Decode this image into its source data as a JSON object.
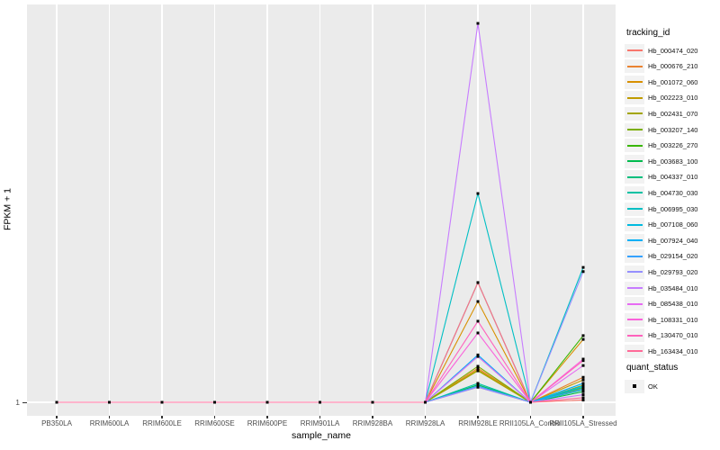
{
  "chart_data": {
    "type": "line",
    "title": "",
    "xlabel": "sample_name",
    "ylabel": "FPKM + 1",
    "y_tick_labels": [
      "1"
    ],
    "value_units": "relative height above the FPKM+1 = 1 baseline (0-1); only the '1' tick is labeled on the y axis",
    "grid": "on",
    "panel_bg": "#EBEBEB",
    "grid_color": "#FFFFFF",
    "point_shape": "filled-square",
    "point_color": "#000000",
    "categories": [
      "PB350LA",
      "RRIM600LA",
      "RRIM600LE",
      "RRIM600SE",
      "RRIM600PE",
      "RRIM901LA",
      "RRIM928BA",
      "RRIM928LA",
      "RRIM928LE",
      "RRII105LA_Control",
      "RRII105LA_Stressed"
    ],
    "series": [
      {
        "name": "Hb_000474_020",
        "color": "#F8766D",
        "values": [
          0,
          0,
          0,
          0,
          0,
          0,
          0,
          0,
          0.04,
          0,
          0.006
        ]
      },
      {
        "name": "Hb_000676_210",
        "color": "#EA8331",
        "values": [
          0,
          0,
          0,
          0,
          0,
          0,
          0,
          0,
          0.09,
          0,
          0.066
        ]
      },
      {
        "name": "Hb_001072_060",
        "color": "#D89000",
        "values": [
          0,
          0,
          0,
          0,
          0,
          0,
          0,
          0,
          0.266,
          0,
          0.166
        ]
      },
      {
        "name": "Hb_002223_010",
        "color": "#C09B00",
        "values": [
          0,
          0,
          0,
          0,
          0,
          0,
          0,
          0,
          0.086,
          0,
          0.059
        ]
      },
      {
        "name": "Hb_002431_070",
        "color": "#A3A500",
        "values": [
          0,
          0,
          0,
          0,
          0,
          0,
          0,
          0,
          0.083,
          0,
          0.045
        ]
      },
      {
        "name": "Hb_003207_140",
        "color": "#7CAE00",
        "values": [
          0,
          0,
          0,
          0,
          0,
          0,
          0,
          0,
          0.095,
          0,
          0.038
        ]
      },
      {
        "name": "Hb_003226_270",
        "color": "#39B600",
        "values": [
          0,
          0,
          0,
          0,
          0,
          0,
          0,
          0,
          0.316,
          0,
          0.176
        ]
      },
      {
        "name": "Hb_003683_100",
        "color": "#00BB4E",
        "values": [
          0,
          0,
          0,
          0,
          0,
          0,
          0,
          0,
          0.046,
          0,
          0.028
        ]
      },
      {
        "name": "Hb_004337_010",
        "color": "#00BF7D",
        "values": [
          0,
          0,
          0,
          0,
          0,
          0,
          0,
          0,
          0.043,
          0,
          0.033
        ]
      },
      {
        "name": "Hb_004730_030",
        "color": "#00C1A3",
        "values": [
          0,
          0,
          0,
          0,
          0,
          0,
          0,
          0,
          0.05,
          0,
          0.04
        ]
      },
      {
        "name": "Hb_006995_030",
        "color": "#00BFC4",
        "values": [
          0,
          0,
          0,
          0,
          0,
          0,
          0,
          0,
          0.551,
          0,
          0.356
        ]
      },
      {
        "name": "Hb_007108_060",
        "color": "#00BAE0",
        "values": [
          0,
          0,
          0,
          0,
          0,
          0,
          0,
          0,
          0.121,
          0,
          0.043
        ]
      },
      {
        "name": "Hb_007924_040",
        "color": "#00B0F6",
        "values": [
          0,
          0,
          0,
          0,
          0,
          0,
          0,
          0,
          0.125,
          0,
          0.05
        ]
      },
      {
        "name": "Hb_029154_020",
        "color": "#35A2FF",
        "values": [
          0,
          0,
          0,
          0,
          0,
          0,
          0,
          0,
          0.043,
          0,
          0.035
        ]
      },
      {
        "name": "Hb_029793_020",
        "color": "#9590FF",
        "values": [
          0,
          0,
          0,
          0,
          0,
          0,
          0,
          0,
          0.04,
          0,
          0.345
        ]
      },
      {
        "name": "Hb_035484_010",
        "color": "#C77CFF",
        "values": [
          0,
          0,
          0,
          0,
          0,
          0,
          0,
          0,
          1.0,
          0,
          0.02
        ]
      },
      {
        "name": "Hb_085438_010",
        "color": "#E76BF3",
        "values": [
          0,
          0,
          0,
          0,
          0,
          0,
          0,
          0,
          0.121,
          0,
          0.097
        ]
      },
      {
        "name": "Hb_108331_010",
        "color": "#FA62DB",
        "values": [
          0,
          0,
          0,
          0,
          0,
          0,
          0,
          0,
          0.183,
          0,
          0.114
        ]
      },
      {
        "name": "Hb_130470_010",
        "color": "#FF62BC",
        "values": [
          0,
          0,
          0,
          0,
          0,
          0,
          0,
          0,
          0.214,
          0,
          0.11
        ]
      },
      {
        "name": "Hb_163434_010",
        "color": "#FF6A98",
        "values": [
          0,
          0,
          0,
          0,
          0,
          0,
          0,
          0,
          0.316,
          0,
          0.012
        ]
      }
    ],
    "legend": {
      "title": "tracking_id",
      "position": "right",
      "quant_title": "quant_status",
      "quant_label": "OK"
    }
  }
}
